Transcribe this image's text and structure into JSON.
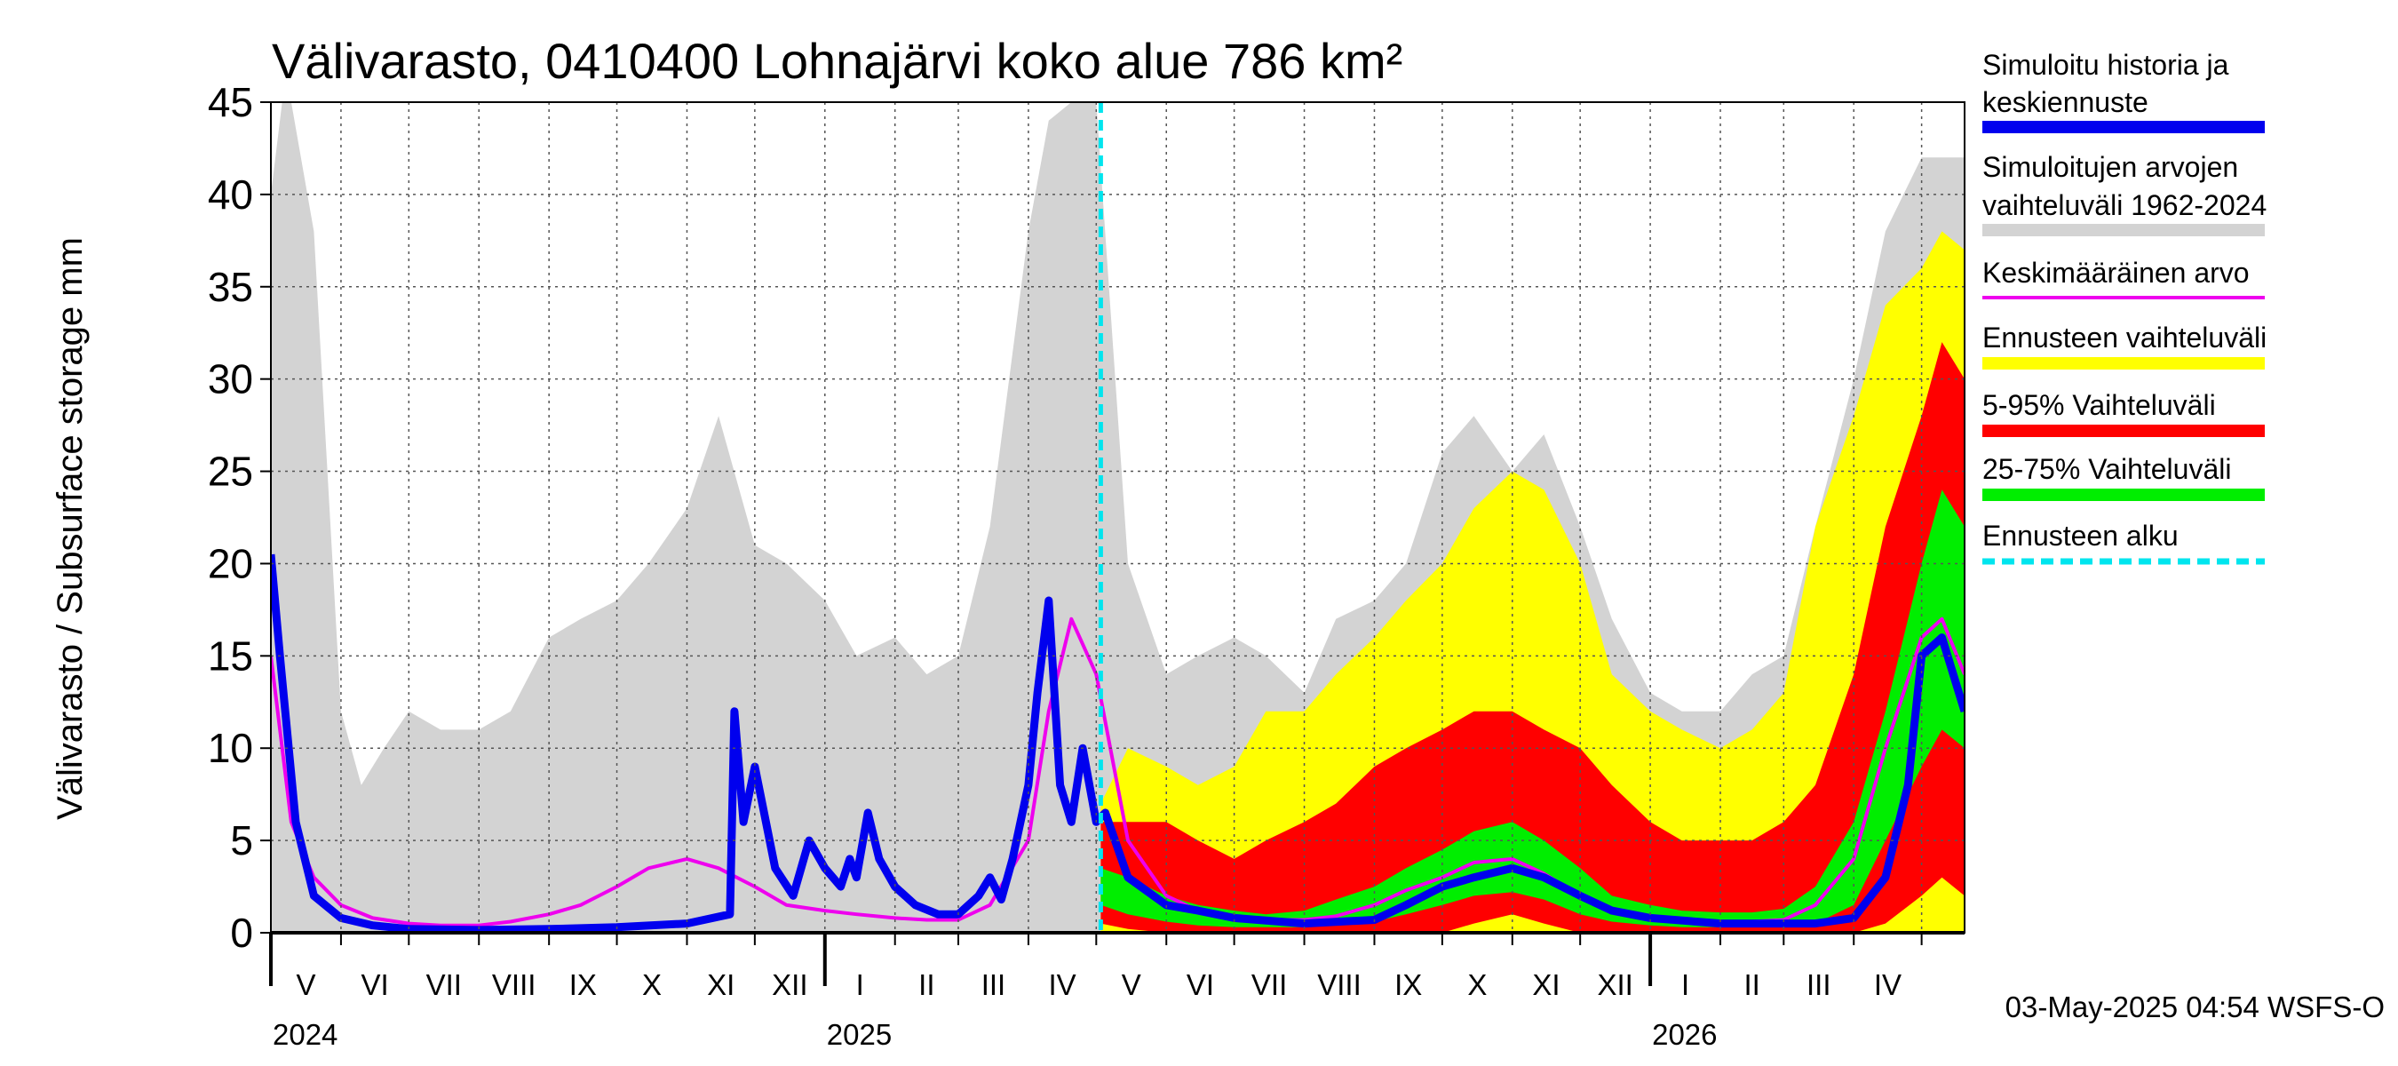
{
  "chart_data": {
    "type": "area",
    "title": "Välivarasto, 0410400 Lohnajärvi koko alue 786 km²",
    "ylabel": "Välivarasto / Subsurface storage  mm",
    "ylim": [
      0,
      45
    ],
    "yticks": [
      "0",
      "5",
      "10",
      "15",
      "20",
      "25",
      "30",
      "35",
      "40",
      "45"
    ],
    "xlim": [
      "2024-05-01",
      "2026-05-20"
    ],
    "forecast_start": "2025-05-03",
    "grid": true,
    "legend_position": "right",
    "months": [
      {
        "label": "V",
        "date": "2024-05-01"
      },
      {
        "label": "VI",
        "date": "2024-06-01"
      },
      {
        "label": "VII",
        "date": "2024-07-01"
      },
      {
        "label": "VIII",
        "date": "2024-08-01"
      },
      {
        "label": "IX",
        "date": "2024-09-01"
      },
      {
        "label": "X",
        "date": "2024-10-01"
      },
      {
        "label": "XI",
        "date": "2024-11-01"
      },
      {
        "label": "XII",
        "date": "2024-12-01"
      },
      {
        "label": "I",
        "date": "2025-01-01"
      },
      {
        "label": "II",
        "date": "2025-02-01"
      },
      {
        "label": "III",
        "date": "2025-03-01"
      },
      {
        "label": "IV",
        "date": "2025-04-01"
      },
      {
        "label": "V",
        "date": "2025-05-01"
      },
      {
        "label": "VI",
        "date": "2025-06-01"
      },
      {
        "label": "VII",
        "date": "2025-07-01"
      },
      {
        "label": "VIII",
        "date": "2025-08-01"
      },
      {
        "label": "IX",
        "date": "2025-09-01"
      },
      {
        "label": "X",
        "date": "2025-10-01"
      },
      {
        "label": "XI",
        "date": "2025-11-01"
      },
      {
        "label": "XII",
        "date": "2025-12-01"
      },
      {
        "label": "I",
        "date": "2026-01-01"
      },
      {
        "label": "II",
        "date": "2026-02-01"
      },
      {
        "label": "III",
        "date": "2026-03-01"
      },
      {
        "label": "IV",
        "date": "2026-04-01"
      },
      {
        "label": "",
        "date": "2026-05-01"
      }
    ],
    "years": [
      {
        "label": "2024",
        "date": "2024-05-01"
      },
      {
        "label": "2025",
        "date": "2025-01-01"
      },
      {
        "label": "2026",
        "date": "2026-01-01"
      }
    ],
    "series": [
      {
        "name": "Simuloitujen arvojen vaihteluväli 1962-2024",
        "role": "band",
        "color": "#d3d3d3",
        "x": [
          "2024-05-01",
          "2024-05-06",
          "2024-05-10",
          "2024-05-20",
          "2024-06-01",
          "2024-06-10",
          "2024-06-20",
          "2024-07-01",
          "2024-07-15",
          "2024-08-01",
          "2024-08-15",
          "2024-09-01",
          "2024-09-15",
          "2024-10-01",
          "2024-10-15",
          "2024-11-01",
          "2024-11-15",
          "2024-12-01",
          "2024-12-15",
          "2025-01-01",
          "2025-01-15",
          "2025-02-01",
          "2025-02-15",
          "2025-03-01",
          "2025-03-15",
          "2025-04-01",
          "2025-04-10",
          "2025-04-20",
          "2025-05-01",
          "2025-05-15",
          "2025-06-01",
          "2025-06-15",
          "2025-07-01",
          "2025-07-15",
          "2025-08-01",
          "2025-08-15",
          "2025-09-01",
          "2025-09-15",
          "2025-10-01",
          "2025-10-15",
          "2025-11-01",
          "2025-11-15",
          "2025-12-01",
          "2025-12-15",
          "2026-01-01",
          "2026-01-15",
          "2026-02-01",
          "2026-02-15",
          "2026-03-01",
          "2026-03-15",
          "2026-04-01",
          "2026-04-15",
          "2026-05-01",
          "2026-05-10",
          "2026-05-20"
        ],
        "low": [
          0,
          0,
          0,
          0,
          0,
          0,
          0,
          0,
          0,
          0,
          0,
          0,
          0,
          0,
          0,
          0,
          0,
          0,
          0,
          0,
          0,
          0,
          0,
          0,
          0,
          0,
          0,
          0,
          0,
          0,
          0,
          0,
          0,
          0,
          0,
          0,
          0,
          0,
          0,
          0,
          0,
          0,
          0,
          0,
          0,
          0,
          0,
          0,
          0,
          0,
          0,
          0,
          0,
          0,
          0
        ],
        "high": [
          40,
          45,
          45,
          38,
          12,
          8,
          10,
          12,
          11,
          11,
          12,
          16,
          17,
          18,
          20,
          23,
          28,
          21,
          20,
          18,
          15,
          16,
          14,
          15,
          22,
          38,
          44,
          45,
          45,
          20,
          14,
          15,
          16,
          15,
          13,
          17,
          18,
          20,
          26,
          28,
          25,
          27,
          22,
          17,
          13,
          12,
          12,
          14,
          15,
          22,
          30,
          38,
          42,
          42,
          42
        ]
      },
      {
        "name": "Ennusteen vaihteluväli",
        "role": "band",
        "color": "#ffff00",
        "x": [
          "2025-05-03",
          "2025-05-15",
          "2025-06-01",
          "2025-06-15",
          "2025-07-01",
          "2025-07-15",
          "2025-08-01",
          "2025-08-15",
          "2025-09-01",
          "2025-09-15",
          "2025-10-01",
          "2025-10-15",
          "2025-11-01",
          "2025-11-15",
          "2025-12-01",
          "2025-12-15",
          "2026-01-01",
          "2026-01-15",
          "2026-02-01",
          "2026-02-15",
          "2026-03-01",
          "2026-03-15",
          "2026-04-01",
          "2026-04-15",
          "2026-05-01",
          "2026-05-10",
          "2026-05-20"
        ],
        "low": [
          0,
          0,
          0,
          0,
          0,
          0,
          0,
          0,
          0,
          0,
          0,
          0,
          0,
          0,
          0,
          0,
          0,
          0,
          0,
          0,
          0,
          0,
          0,
          0,
          0,
          0,
          0
        ],
        "high": [
          7,
          10,
          9,
          8,
          9,
          12,
          12,
          14,
          16,
          18,
          20,
          23,
          25,
          24,
          20,
          14,
          12,
          11,
          10,
          11,
          13,
          22,
          28,
          34,
          36,
          38,
          37
        ]
      },
      {
        "name": "5-95% Vaihteluväli",
        "role": "band",
        "color": "#ff0000",
        "x": [
          "2025-05-03",
          "2025-05-15",
          "2025-06-01",
          "2025-06-15",
          "2025-07-01",
          "2025-07-15",
          "2025-08-01",
          "2025-08-15",
          "2025-09-01",
          "2025-09-15",
          "2025-10-01",
          "2025-10-15",
          "2025-11-01",
          "2025-11-15",
          "2025-12-01",
          "2025-12-15",
          "2026-01-01",
          "2026-01-15",
          "2026-02-01",
          "2026-02-15",
          "2026-03-01",
          "2026-03-15",
          "2026-04-01",
          "2026-04-15",
          "2026-05-01",
          "2026-05-10",
          "2026-05-20"
        ],
        "low": [
          0.5,
          0.2,
          0,
          0,
          0,
          0,
          0,
          0,
          0,
          0,
          0,
          0.5,
          1,
          0.5,
          0,
          0,
          0,
          0,
          0,
          0,
          0,
          0,
          0,
          0.5,
          2,
          3,
          2
        ],
        "high": [
          6,
          6,
          6,
          5,
          4,
          5,
          6,
          7,
          9,
          10,
          11,
          12,
          12,
          11,
          10,
          8,
          6,
          5,
          5,
          5,
          6,
          8,
          14,
          22,
          28,
          32,
          30
        ]
      },
      {
        "name": "25-75% Vaihteluväli",
        "role": "band",
        "color": "#00ee00",
        "x": [
          "2025-05-03",
          "2025-05-15",
          "2025-06-01",
          "2025-06-15",
          "2025-07-01",
          "2025-07-15",
          "2025-08-01",
          "2025-08-15",
          "2025-09-01",
          "2025-09-15",
          "2025-10-01",
          "2025-10-15",
          "2025-11-01",
          "2025-11-15",
          "2025-12-01",
          "2025-12-15",
          "2026-01-01",
          "2026-01-15",
          "2026-02-01",
          "2026-02-15",
          "2026-03-01",
          "2026-03-15",
          "2026-04-01",
          "2026-04-15",
          "2026-05-01",
          "2026-05-10",
          "2026-05-20"
        ],
        "low": [
          1.5,
          1,
          0.6,
          0.4,
          0.3,
          0.3,
          0.3,
          0.4,
          0.6,
          1,
          1.5,
          2,
          2.2,
          1.8,
          1,
          0.6,
          0.4,
          0.3,
          0.3,
          0.3,
          0.3,
          0.5,
          1.5,
          5,
          9,
          11,
          10
        ],
        "high": [
          3.5,
          3,
          2,
          1.5,
          1.2,
          1,
          1.2,
          1.8,
          2.5,
          3.5,
          4.5,
          5.5,
          6,
          5,
          3.5,
          2,
          1.5,
          1.2,
          1.1,
          1.1,
          1.3,
          2.5,
          6,
          12,
          20,
          24,
          22
        ]
      },
      {
        "name": "Keskimääräinen arvo",
        "role": "line",
        "color": "#ee00ee",
        "x": [
          "2024-05-01",
          "2024-05-10",
          "2024-05-20",
          "2024-06-01",
          "2024-06-15",
          "2024-07-01",
          "2024-07-15",
          "2024-08-01",
          "2024-08-15",
          "2024-09-01",
          "2024-09-15",
          "2024-10-01",
          "2024-10-15",
          "2024-11-01",
          "2024-11-15",
          "2024-12-01",
          "2024-12-15",
          "2025-01-01",
          "2025-01-15",
          "2025-02-01",
          "2025-02-15",
          "2025-03-01",
          "2025-03-15",
          "2025-04-01",
          "2025-04-10",
          "2025-04-20",
          "2025-05-01",
          "2025-05-15",
          "2025-06-01",
          "2025-06-15",
          "2025-07-01",
          "2025-07-15",
          "2025-08-01",
          "2025-08-15",
          "2025-09-01",
          "2025-09-15",
          "2025-10-01",
          "2025-10-15",
          "2025-11-01",
          "2025-11-15",
          "2025-12-01",
          "2025-12-15",
          "2026-01-01",
          "2026-01-15",
          "2026-02-01",
          "2026-02-15",
          "2026-03-01",
          "2026-03-15",
          "2026-04-01",
          "2026-04-15",
          "2026-05-01",
          "2026-05-10",
          "2026-05-20"
        ],
        "values": [
          15,
          6,
          3,
          1.5,
          0.8,
          0.5,
          0.4,
          0.4,
          0.6,
          1,
          1.5,
          2.5,
          3.5,
          4,
          3.5,
          2.5,
          1.5,
          1.2,
          1,
          0.8,
          0.7,
          0.7,
          1.5,
          5,
          12,
          17,
          14,
          5,
          2,
          1.2,
          0.8,
          0.7,
          0.7,
          0.9,
          1.5,
          2.3,
          3,
          3.8,
          4,
          3.2,
          2,
          1.2,
          0.8,
          0.6,
          0.6,
          0.6,
          0.7,
          1.5,
          4,
          10,
          16,
          17,
          14
        ]
      },
      {
        "name": "Simuloitu historia ja keskiennuste",
        "role": "line",
        "color": "#0000ee",
        "x": [
          "2024-05-01",
          "2024-05-05",
          "2024-05-12",
          "2024-05-20",
          "2024-06-01",
          "2024-06-15",
          "2024-07-01",
          "2024-08-01",
          "2024-09-01",
          "2024-10-01",
          "2024-11-01",
          "2024-11-20",
          "2024-11-22",
          "2024-11-26",
          "2024-12-01",
          "2024-12-10",
          "2024-12-18",
          "2024-12-25",
          "2025-01-01",
          "2025-01-08",
          "2025-01-12",
          "2025-01-15",
          "2025-01-20",
          "2025-01-25",
          "2025-02-01",
          "2025-02-10",
          "2025-02-20",
          "2025-03-01",
          "2025-03-10",
          "2025-03-15",
          "2025-03-20",
          "2025-03-25",
          "2025-04-01",
          "2025-04-05",
          "2025-04-10",
          "2025-04-15",
          "2025-04-20",
          "2025-04-25",
          "2025-05-01",
          "2025-05-05",
          "2025-05-15",
          "2025-06-01",
          "2025-06-15",
          "2025-07-01",
          "2025-08-01",
          "2025-09-01",
          "2025-09-15",
          "2025-10-01",
          "2025-10-15",
          "2025-11-01",
          "2025-11-15",
          "2025-12-01",
          "2025-12-15",
          "2026-01-01",
          "2026-02-01",
          "2026-03-01",
          "2026-03-15",
          "2026-04-01",
          "2026-04-15",
          "2026-04-25",
          "2026-05-01",
          "2026-05-10",
          "2026-05-20"
        ],
        "values": [
          20.5,
          15,
          6,
          2,
          0.8,
          0.4,
          0.2,
          0.15,
          0.2,
          0.3,
          0.5,
          1,
          12,
          6,
          9,
          3.5,
          2,
          5,
          3.5,
          2.5,
          4,
          3,
          6.5,
          4,
          2.5,
          1.5,
          1,
          1,
          2,
          3,
          1.8,
          4,
          8,
          13,
          18,
          8,
          6,
          10,
          6,
          6.5,
          3,
          1.5,
          1.2,
          0.8,
          0.5,
          0.7,
          1.5,
          2.5,
          3,
          3.5,
          3,
          2,
          1.2,
          0.8,
          0.5,
          0.5,
          0.5,
          0.8,
          3,
          8,
          15,
          16,
          12
        ]
      }
    ]
  },
  "legend": [
    {
      "line1": "Simuloitu historia ja",
      "line2": "keskiennuste",
      "color": "#0000ee",
      "style": "solid"
    },
    {
      "line1": "Simuloitujen arvojen",
      "line2": "vaihteluväli 1962-2024",
      "color": "#d3d3d3",
      "style": "solid"
    },
    {
      "line1": "Keskimääräinen arvo",
      "line2": "",
      "color": "#ee00ee",
      "style": "thin"
    },
    {
      "line1": "Ennusteen vaihteluväli",
      "line2": "",
      "color": "#ffff00",
      "style": "solid"
    },
    {
      "line1": "5-95% Vaihteluväli",
      "line2": "",
      "color": "#ff0000",
      "style": "solid"
    },
    {
      "line1": "25-75% Vaihteluväli",
      "line2": "",
      "color": "#00ee00",
      "style": "solid"
    },
    {
      "line1": "Ennusteen alku",
      "line2": "",
      "color": "#00e5ee",
      "style": "dashed"
    }
  ],
  "timestamp": "03-May-2025 04:54 WSFS-O"
}
